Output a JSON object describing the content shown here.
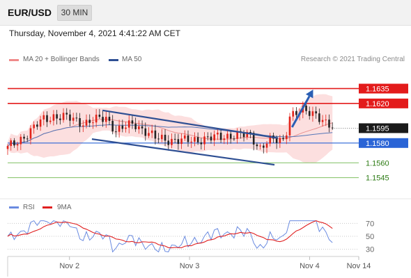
{
  "header": {
    "pair": "EUR/USD",
    "timeframe": "30 MIN"
  },
  "datetime": "Thursday, November 4, 2021 4:41:22 AM CET",
  "legend": {
    "bollinger": "MA 20 + Bollinger Bands",
    "ma50": "MA 50",
    "rsi": "RSI",
    "rsi_ma": "9MA"
  },
  "copyright": "Research © 2021 Trading Central",
  "colors": {
    "resistance": "#e31b1b",
    "support": "#2a64d6",
    "support_dotted": "#7fbf60",
    "trendline": "#2e4f93",
    "bullish": "#e2231a",
    "bearish": "#222222",
    "band_fill": "#fcd9d9",
    "rsi": "#6a8be0",
    "rsi_ma": "#e02020",
    "arrow": "#2b5fb4"
  },
  "chart_data": [
    {
      "type": "candlestick",
      "ylim": [
        1.153,
        1.1655
      ],
      "x_ticks": [
        "Nov 2",
        "Nov 3",
        "Nov 4",
        "Nov 14"
      ],
      "levels": [
        {
          "label": "1.1635",
          "value": 1.1635,
          "kind": "resistance",
          "boxed": true
        },
        {
          "label": "1.1620",
          "value": 1.162,
          "kind": "resistance",
          "boxed": true
        },
        {
          "label": "1.1595",
          "value": 1.1595,
          "kind": "current",
          "boxed": true
        },
        {
          "label": "1.1580",
          "value": 1.158,
          "kind": "pivot",
          "boxed": true
        },
        {
          "label": "1.1560",
          "value": 1.156,
          "kind": "support",
          "boxed": false
        },
        {
          "label": "1.1545",
          "value": 1.1545,
          "kind": "support",
          "boxed": false
        }
      ],
      "trend_channel": {
        "upper": [
          [
            0.27,
            1.1613
          ],
          [
            0.77,
            1.1585
          ]
        ],
        "lower": [
          [
            0.24,
            1.1584
          ],
          [
            0.76,
            1.1558
          ]
        ]
      },
      "projection_arrow": {
        "from": [
          0.81,
          1.1596
        ],
        "to": [
          0.87,
          1.1634
        ]
      },
      "indicators": [
        "MA 20 + Bollinger Bands",
        "MA 50"
      ],
      "bars": 100
    },
    {
      "type": "line",
      "title": "RSI",
      "series": [
        {
          "name": "RSI"
        },
        {
          "name": "9MA"
        }
      ],
      "y_ticks": [
        70,
        50,
        30
      ],
      "ylim": [
        20,
        80
      ]
    }
  ]
}
